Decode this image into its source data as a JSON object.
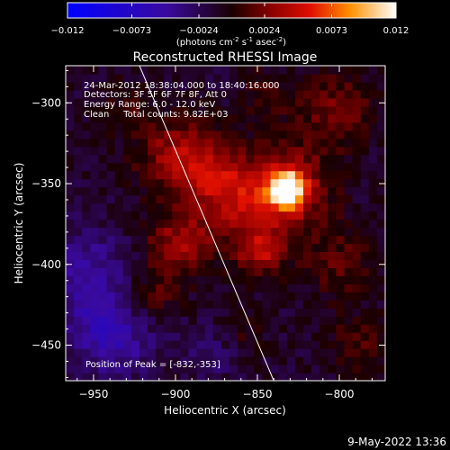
{
  "chart_data": {
    "type": "heatmap",
    "title": "Reconstructed RHESSI Image",
    "xlabel": "Heliocentric X (arcsec)",
    "ylabel": "Heliocentric Y (arcsec)",
    "xlim": [
      -967,
      -772
    ],
    "ylim": [
      -472,
      -277
    ],
    "xticks": [
      -950,
      -900,
      -850,
      -800
    ],
    "yticks": [
      -300,
      -350,
      -400,
      -450
    ],
    "colorbar": {
      "ticks": [
        "-0.012",
        "-0.0073",
        "-0.0024",
        "0.0024",
        "0.0073",
        "0.012"
      ],
      "range": [
        -0.012,
        0.012
      ],
      "units_prefix": "(photons cm",
      "units_exp1": "-2",
      "units_mid": " s",
      "units_exp2": "-1",
      "units_mid2": " asec",
      "units_exp3": "-2",
      "units_suffix": ")"
    },
    "annotations": {
      "line1": "24-Mar-2012 18:38:04.000 to 18:40:16.000",
      "line2": "Detectors: 3F 5F 6F 7F 8F, Att 0",
      "line3": "Energy Range: 6.0 - 12.0 keV",
      "line4": "Clean     Total counts: 9.82E+03",
      "peak": "Position of Peak = [-832,-353]"
    },
    "peak": {
      "x": -832,
      "y": -353
    },
    "sources": [
      {
        "x": -832,
        "y": -353,
        "amp": 0.0125,
        "sigma": 7
      },
      {
        "x": -832,
        "y": -353,
        "amp": 0.006,
        "sigma": 18
      },
      {
        "x": -898,
        "y": -333,
        "amp": 0.005,
        "sigma": 17
      },
      {
        "x": -872,
        "y": -348,
        "amp": 0.004,
        "sigma": 14
      },
      {
        "x": -848,
        "y": -393,
        "amp": 0.0045,
        "sigma": 10
      },
      {
        "x": -860,
        "y": -370,
        "amp": 0.003,
        "sigma": 18
      },
      {
        "x": -898,
        "y": -387,
        "amp": 0.0045,
        "sigma": 14
      },
      {
        "x": -915,
        "y": -420,
        "amp": 0.003,
        "sigma": 12
      },
      {
        "x": -802,
        "y": -305,
        "amp": 0.0035,
        "sigma": 16
      },
      {
        "x": -800,
        "y": -400,
        "amp": 0.0025,
        "sigma": 16
      },
      {
        "x": -790,
        "y": -450,
        "amp": 0.0025,
        "sigma": 12
      },
      {
        "x": -845,
        "y": -295,
        "amp": 0.002,
        "sigma": 12
      },
      {
        "x": -930,
        "y": -300,
        "amp": 0.0015,
        "sigma": 12
      },
      {
        "x": -860,
        "y": -440,
        "amp": 0.0015,
        "sigma": 10
      },
      {
        "x": -940,
        "y": -440,
        "amp": -0.0045,
        "sigma": 20
      },
      {
        "x": -955,
        "y": -400,
        "amp": -0.003,
        "sigma": 18
      },
      {
        "x": -880,
        "y": -455,
        "amp": -0.002,
        "sigma": 12
      }
    ],
    "limb_line": {
      "x1": -922,
      "y1": -277,
      "x2": -840,
      "y2": -472
    }
  },
  "footer": {
    "timestamp": "9-May-2022 13:36"
  }
}
